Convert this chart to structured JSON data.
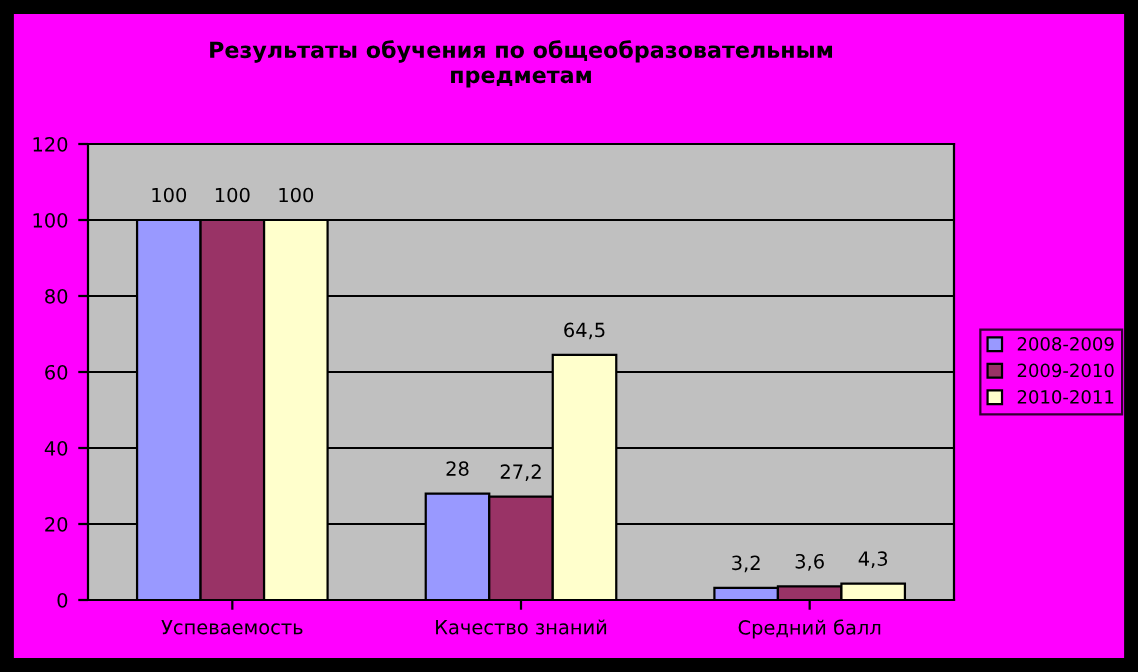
{
  "chart_data": {
    "type": "bar",
    "title": "Результаты обучения по общеобразовательным\nпредметам",
    "categories": [
      "Успеваемость",
      "Качество знаний",
      "Средний балл"
    ],
    "series": [
      {
        "name": "2008-2009",
        "color": "#9999ff",
        "values": [
          100,
          28,
          3.2
        ],
        "value_labels": [
          "100",
          "28",
          "3,2"
        ]
      },
      {
        "name": "2009-2010",
        "color": "#993366",
        "values": [
          100,
          27.2,
          3.6
        ],
        "value_labels": [
          "100",
          "27,2",
          "3,6"
        ]
      },
      {
        "name": "2010-2011",
        "color": "#ffffcc",
        "values": [
          100,
          64.5,
          4.3
        ],
        "value_labels": [
          "100",
          "64,5",
          "4,3"
        ]
      }
    ],
    "ylim": [
      0,
      120
    ],
    "yticks": [
      0,
      20,
      40,
      60,
      80,
      100,
      120
    ],
    "grid": "y",
    "legend": "right"
  }
}
